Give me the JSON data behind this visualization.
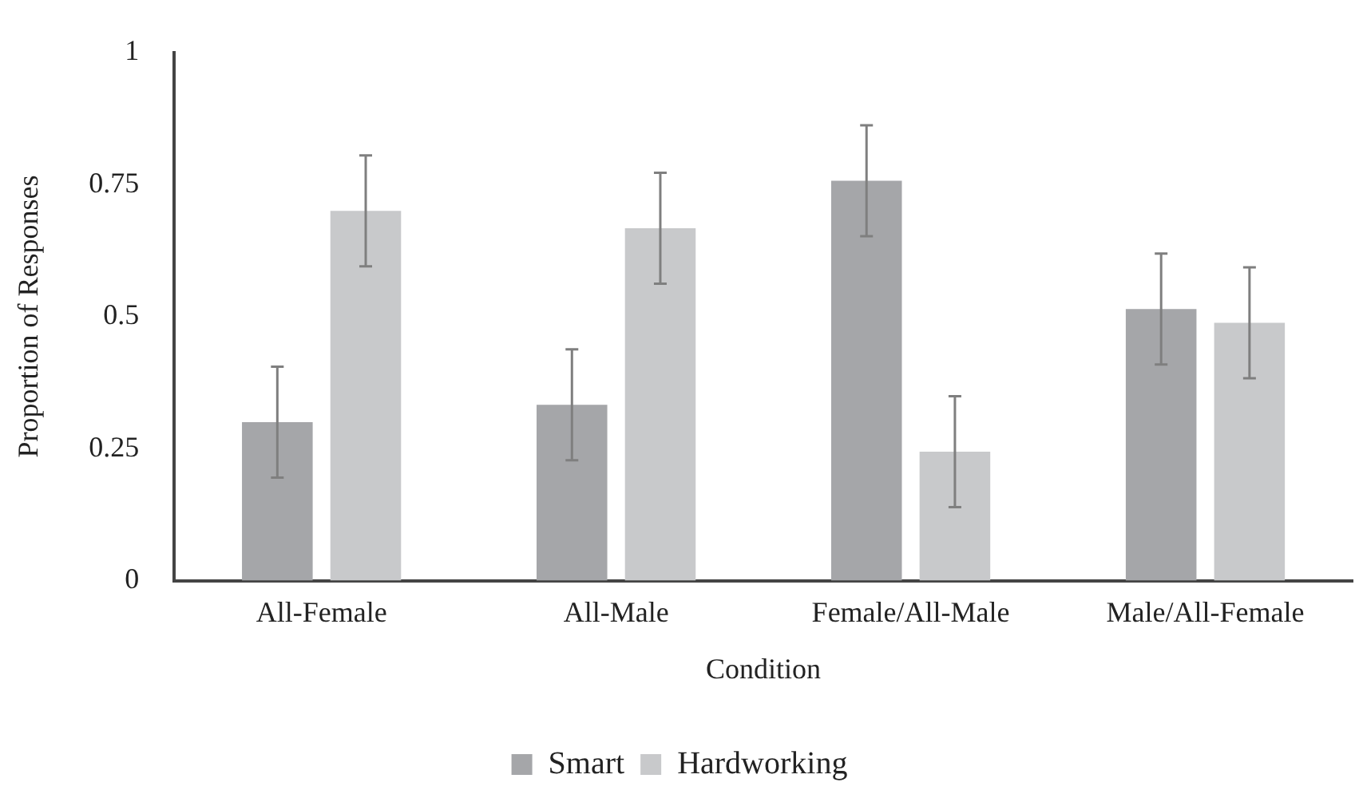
{
  "chart_data": {
    "type": "bar",
    "xlabel": "Condition",
    "ylabel": "Proportion of Responses",
    "categories": [
      "All-Female",
      "All-Male",
      "Female/All-Male",
      "Male/All-Female"
    ],
    "series": [
      {
        "name": "Smart",
        "color": "#a5a6a9",
        "values": [
          0.3,
          0.333,
          0.757,
          0.514
        ],
        "errors": [
          0.105,
          0.105,
          0.105,
          0.105
        ]
      },
      {
        "name": "Hardworking",
        "color": "#c8c9cb",
        "values": [
          0.7,
          0.667,
          0.244,
          0.488
        ],
        "errors": [
          0.105,
          0.105,
          0.105,
          0.105
        ]
      }
    ],
    "ylim": [
      0,
      1
    ],
    "yticks": [
      0,
      0.25,
      0.5,
      0.75,
      1
    ],
    "grid": false,
    "legend": "bottom"
  }
}
